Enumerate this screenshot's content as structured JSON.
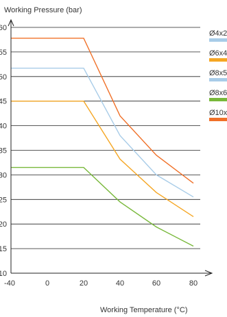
{
  "chart_data": {
    "type": "line",
    "ylabel": "Working Pressure (bar)",
    "xlabel": "Working Temperature (°C)",
    "xlim": [
      -40,
      80
    ],
    "ylim": [
      10,
      60
    ],
    "x_ticks": [
      -40,
      0,
      20,
      40,
      60,
      80
    ],
    "y_ticks": [
      10,
      15,
      20,
      25,
      30,
      35,
      40,
      45,
      50,
      55,
      60
    ],
    "grid": "horizontal",
    "legend_placement": "right",
    "x": [
      -40,
      20,
      40,
      60,
      80
    ],
    "series": [
      {
        "name": "Ø4x2",
        "color": "#a8cce8",
        "values": [
          51.7,
          51.7,
          38.0,
          30.0,
          25.5
        ]
      },
      {
        "name": "Ø6x4",
        "color": "#f5a623",
        "values": [
          45.0,
          45.0,
          33.2,
          26.4,
          21.5
        ]
      },
      {
        "name": "Ø8x5",
        "color": "#a8cce8",
        "values": [
          null,
          null,
          null,
          null,
          null
        ]
      },
      {
        "name": "Ø8x6",
        "color": "#78b83a",
        "values": [
          31.5,
          31.5,
          24.5,
          19.4,
          15.5
        ]
      },
      {
        "name": "Ø10x",
        "color": "#f07028",
        "values": [
          57.8,
          57.8,
          42.0,
          34.0,
          28.3
        ]
      }
    ]
  }
}
